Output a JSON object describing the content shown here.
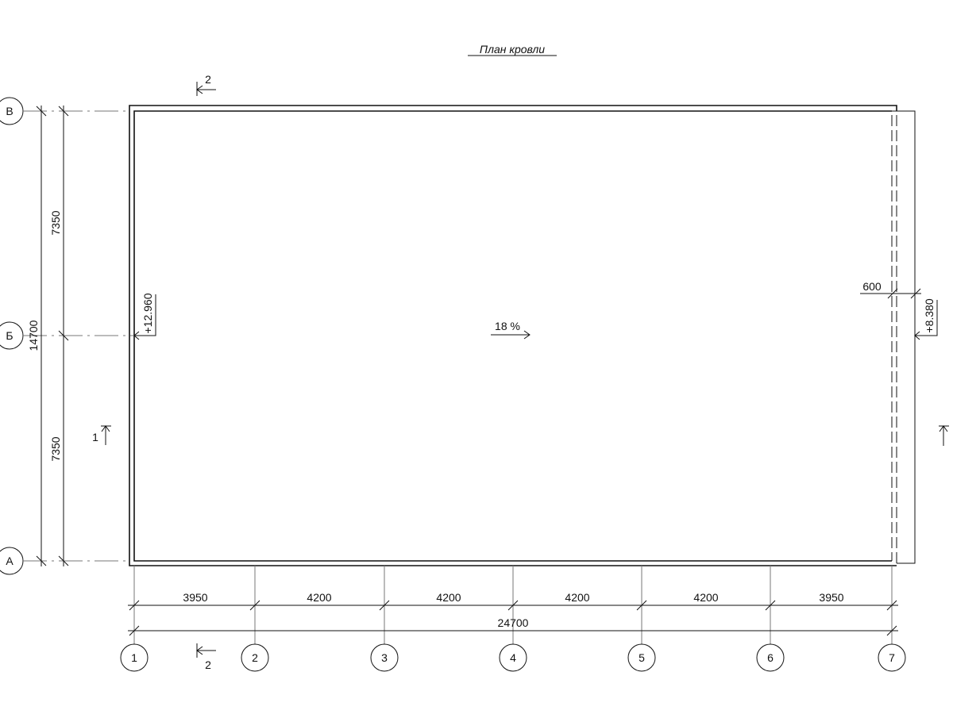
{
  "title": "План кровли",
  "slope_label": "18 %",
  "elevations": {
    "left": "+12.960",
    "right": "+8.380"
  },
  "overhang_dimension": "600",
  "row_axes": [
    "В",
    "Б",
    "А"
  ],
  "column_axes": [
    "1",
    "2",
    "3",
    "4",
    "5",
    "6",
    "7"
  ],
  "vertical_dimensions": {
    "segments": [
      "7350",
      "7350"
    ],
    "total": "14700"
  },
  "horizontal_dimensions": {
    "segments": [
      "3950",
      "4200",
      "4200",
      "4200",
      "4200",
      "3950"
    ],
    "total": "24700"
  },
  "section_marks": {
    "top": "2",
    "bottom": "2",
    "left": "1"
  }
}
